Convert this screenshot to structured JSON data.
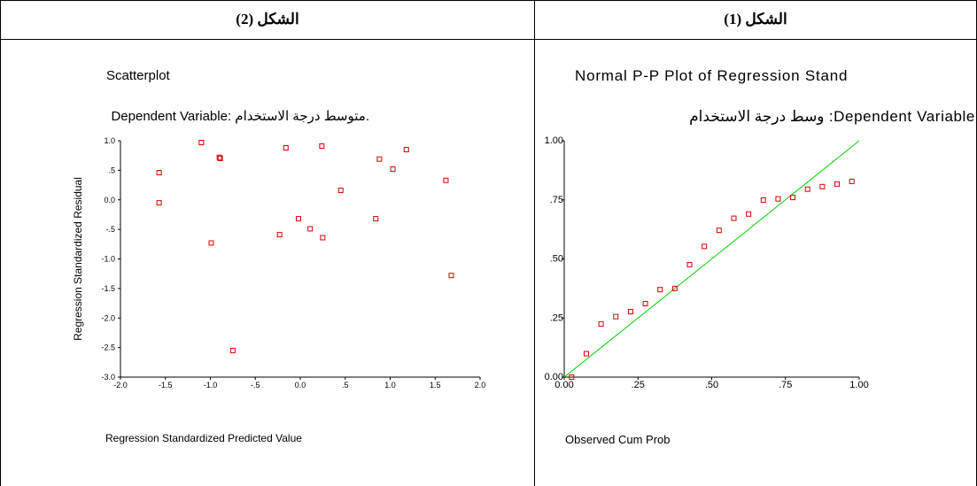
{
  "table": {
    "left_header": "الشكل (2)",
    "right_header": "الشكل (1)"
  },
  "left_panel": {
    "title": "Scatterplot",
    "subtitle": "Dependent Variable: متوسط درجة الاستخدام."
  },
  "right_panel": {
    "title": "Normal P-P Plot of Regression Stand",
    "subtitle": "Dependent Variable: وسط درجة الاستخدام"
  },
  "colors": {
    "marker": "#d40000",
    "line": "#00d000",
    "axis": "#000000"
  },
  "chart_data": [
    {
      "type": "scatter",
      "title": "Scatterplot",
      "subtitle": "Dependent Variable: متوسط درجة الاستخدام.",
      "xlabel": "Regression Standardized Predicted Value",
      "ylabel": "Regression Standardized Residual",
      "xlim": [
        -2.0,
        2.0
      ],
      "ylim": [
        -3.0,
        1.0
      ],
      "x_ticks": [
        -2.0,
        -1.5,
        -1.0,
        -0.5,
        0.0,
        0.5,
        1.0,
        1.5,
        2.0
      ],
      "x_tick_labels": [
        "-2.0",
        "-1.5",
        "-1.0",
        "-.5",
        "0.0",
        ".5",
        "1.0",
        "1.5",
        "2.0"
      ],
      "y_ticks": [
        1.0,
        0.5,
        0.0,
        -0.5,
        -1.0,
        -1.5,
        -2.0,
        -2.5,
        -3.0
      ],
      "y_tick_labels": [
        "1.0",
        ".5",
        "0.0",
        "-.5",
        "-1.0",
        "-1.5",
        "-2.0",
        "-2.5",
        "-3.0"
      ],
      "grid": false,
      "marker": "open-square",
      "points": [
        {
          "x": -1.57,
          "y": 0.46
        },
        {
          "x": -1.57,
          "y": -0.05
        },
        {
          "x": -1.1,
          "y": 0.97
        },
        {
          "x": -0.99,
          "y": -0.73
        },
        {
          "x": -0.9,
          "y": 0.72
        },
        {
          "x": -0.89,
          "y": 0.7
        },
        {
          "x": -0.75,
          "y": -2.55
        },
        {
          "x": -0.23,
          "y": -0.59
        },
        {
          "x": -0.16,
          "y": 0.88
        },
        {
          "x": -0.02,
          "y": -0.32
        },
        {
          "x": 0.11,
          "y": -0.49
        },
        {
          "x": 0.24,
          "y": 0.91
        },
        {
          "x": 0.25,
          "y": -0.64
        },
        {
          "x": 0.45,
          "y": 0.16
        },
        {
          "x": 0.84,
          "y": -0.32
        },
        {
          "x": 0.88,
          "y": 0.69
        },
        {
          "x": 1.03,
          "y": 0.52
        },
        {
          "x": 1.18,
          "y": 0.85
        },
        {
          "x": 1.62,
          "y": 0.33
        },
        {
          "x": 1.68,
          "y": -1.28
        }
      ]
    },
    {
      "type": "scatter",
      "title": "Normal P-P Plot of Regression Stand",
      "subtitle": "Dependent Variable: وسط درجة الاستخدام",
      "xlabel": "Observed Cum Prob",
      "ylabel": "",
      "xlim": [
        0.0,
        1.0
      ],
      "ylim": [
        0.0,
        1.0
      ],
      "x_ticks": [
        0.0,
        0.25,
        0.5,
        0.75,
        1.0
      ],
      "x_tick_labels": [
        "0.00",
        ".25",
        ".50",
        ".75",
        "1.00"
      ],
      "y_ticks": [
        1.0,
        0.75,
        0.5,
        0.25,
        0.0
      ],
      "y_tick_labels": [
        "1.00",
        ".75",
        ".50",
        ".25",
        "0.00"
      ],
      "grid": false,
      "marker": "open-square",
      "reference_line": [
        [
          0.0,
          0.0
        ],
        [
          1.0,
          1.0
        ]
      ],
      "points": [
        {
          "x": 0.025,
          "y": 0.0
        },
        {
          "x": 0.075,
          "y": 0.099
        },
        {
          "x": 0.125,
          "y": 0.225
        },
        {
          "x": 0.175,
          "y": 0.256
        },
        {
          "x": 0.225,
          "y": 0.277
        },
        {
          "x": 0.275,
          "y": 0.311
        },
        {
          "x": 0.325,
          "y": 0.37
        },
        {
          "x": 0.375,
          "y": 0.375
        },
        {
          "x": 0.425,
          "y": 0.476
        },
        {
          "x": 0.475,
          "y": 0.553
        },
        {
          "x": 0.525,
          "y": 0.621
        },
        {
          "x": 0.575,
          "y": 0.672
        },
        {
          "x": 0.625,
          "y": 0.69
        },
        {
          "x": 0.675,
          "y": 0.749
        },
        {
          "x": 0.725,
          "y": 0.754
        },
        {
          "x": 0.775,
          "y": 0.76
        },
        {
          "x": 0.825,
          "y": 0.795
        },
        {
          "x": 0.875,
          "y": 0.806
        },
        {
          "x": 0.925,
          "y": 0.817
        },
        {
          "x": 0.975,
          "y": 0.828
        }
      ]
    }
  ]
}
